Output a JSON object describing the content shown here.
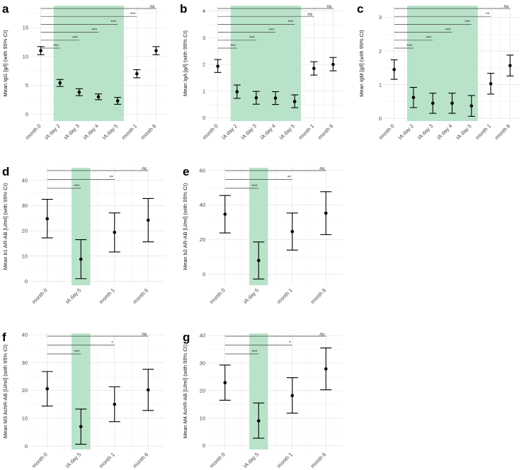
{
  "chart_data": [
    {
      "panel": "a",
      "type": "scatter",
      "ylabel": "Mean IgG [g/l] (with 95% CI)",
      "categories": [
        "month 0",
        "IA day 2",
        "IA day 3",
        "IA day 4",
        "IA day 5",
        "month 1",
        "month 6"
      ],
      "mean": [
        11.0,
        5.4,
        3.8,
        3.0,
        2.3,
        7.0,
        11.0
      ],
      "ci_low": [
        10.3,
        4.8,
        3.2,
        2.5,
        1.7,
        6.3,
        10.3
      ],
      "ci_high": [
        11.7,
        6.0,
        4.4,
        3.5,
        2.9,
        7.7,
        11.7
      ],
      "ylim": [
        -1.2,
        18.8
      ],
      "yticks": [
        0,
        5,
        10,
        15
      ],
      "shaded_range": [
        "IA day 2",
        "IA day 5"
      ],
      "significance": [
        {
          "to": "IA day 2",
          "label": "***"
        },
        {
          "to": "IA day 3",
          "label": "***"
        },
        {
          "to": "IA day 4",
          "label": "***"
        },
        {
          "to": "IA day 5",
          "label": "***"
        },
        {
          "to": "month 1",
          "label": "***"
        },
        {
          "to": "month 6",
          "label": "ns"
        }
      ]
    },
    {
      "panel": "b",
      "type": "scatter",
      "ylabel": "Mean IgA [g/l] (with 95% CI)",
      "categories": [
        "month 0",
        "IA day 2",
        "IA day 3",
        "IA day 4",
        "IA day 5",
        "month 1",
        "month 6"
      ],
      "mean": [
        1.93,
        0.98,
        0.75,
        0.74,
        0.61,
        1.85,
        2.0
      ],
      "ci_low": [
        1.7,
        0.73,
        0.51,
        0.5,
        0.38,
        1.6,
        1.76
      ],
      "ci_high": [
        2.18,
        1.23,
        0.99,
        0.98,
        0.86,
        2.1,
        2.26
      ],
      "ylim": [
        -0.12,
        4.2
      ],
      "yticks": [
        0,
        1,
        2,
        3,
        4
      ],
      "shaded_range": [
        "IA day 2",
        "IA day 5"
      ],
      "significance": [
        {
          "to": "IA day 2",
          "label": "***"
        },
        {
          "to": "IA day 3",
          "label": "***"
        },
        {
          "to": "IA day 4",
          "label": "***"
        },
        {
          "to": "IA day 5",
          "label": "***"
        },
        {
          "to": "month 1",
          "label": "ns"
        },
        {
          "to": "month 6",
          "label": "ns"
        }
      ]
    },
    {
      "panel": "c",
      "type": "scatter",
      "ylabel": "Mean IgM [g/l] (with 95% CI)",
      "categories": [
        "month 0",
        "IA day 2",
        "IA day 3",
        "IA day 4",
        "IA day 5",
        "month 1",
        "month 6"
      ],
      "mean": [
        1.45,
        0.62,
        0.45,
        0.45,
        0.37,
        1.03,
        1.57
      ],
      "ci_low": [
        1.16,
        0.32,
        0.15,
        0.15,
        0.06,
        0.72,
        1.26
      ],
      "ci_high": [
        1.74,
        0.92,
        0.75,
        0.75,
        0.68,
        1.34,
        1.88
      ],
      "ylim": [
        -0.08,
        3.35
      ],
      "yticks": [
        0,
        1,
        2,
        3
      ],
      "shaded_range": [
        "IA day 2",
        "IA day 5"
      ],
      "significance": [
        {
          "to": "IA day 2",
          "label": "***"
        },
        {
          "to": "IA day 3",
          "label": "***"
        },
        {
          "to": "IA day 4",
          "label": "***"
        },
        {
          "to": "IA day 5",
          "label": "***"
        },
        {
          "to": "month 1",
          "label": "**"
        },
        {
          "to": "month 6",
          "label": "ns"
        }
      ]
    },
    {
      "panel": "d",
      "type": "scatter",
      "ylabel": "Mean  b1 AR-AB  [U/ml] (with 95% CI)",
      "categories": [
        "month 0",
        "IA day 5",
        "month 1",
        "month 6"
      ],
      "mean": [
        24.8,
        8.7,
        19.4,
        24.2
      ],
      "ci_low": [
        17.2,
        1.0,
        11.6,
        15.6
      ],
      "ci_high": [
        32.5,
        16.5,
        27.1,
        32.8
      ],
      "ylim": [
        -1.6,
        45.0
      ],
      "yticks": [
        0,
        10,
        20,
        30,
        40
      ],
      "shaded_range": [
        "IA day 5",
        "IA day 5"
      ],
      "significance": [
        {
          "to": "IA day 5",
          "label": "***"
        },
        {
          "to": "month 1",
          "label": "**"
        },
        {
          "to": "month 6",
          "label": "ns"
        }
      ]
    },
    {
      "panel": "e",
      "type": "scatter",
      "ylabel": "Mean  b2 AR-AB  [U/ml] (with 95% CI)",
      "categories": [
        "month 0",
        "IA day 5",
        "month 1",
        "month 6"
      ],
      "mean": [
        34.7,
        8.0,
        24.7,
        35.3
      ],
      "ci_low": [
        23.9,
        -2.7,
        14.0,
        22.9
      ],
      "ci_high": [
        45.5,
        18.7,
        35.4,
        47.7
      ],
      "ylim": [
        -6.3,
        61.5
      ],
      "yticks": [
        0,
        20,
        40,
        60
      ],
      "shaded_range": [
        "IA day 5",
        "IA day 5"
      ],
      "significance": [
        {
          "to": "IA day 5",
          "label": "***"
        },
        {
          "to": "month 1",
          "label": "**"
        },
        {
          "to": "month 6",
          "label": "ns"
        }
      ]
    },
    {
      "panel": "f",
      "type": "scatter",
      "ylabel": "Mean  M3 AchR-AB  [U/ml] (with 95% CI)",
      "categories": [
        "month 0",
        "IA day 5",
        "month 1",
        "month 6"
      ],
      "mean": [
        20.6,
        7.0,
        15.0,
        20.2
      ],
      "ci_low": [
        14.4,
        0.7,
        8.8,
        12.8
      ],
      "ci_high": [
        26.8,
        13.3,
        21.3,
        27.6
      ],
      "ylim": [
        -1.2,
        40.5
      ],
      "yticks": [
        0,
        10,
        20,
        30,
        40
      ],
      "shaded_range": [
        "IA day 5",
        "IA day 5"
      ],
      "significance": [
        {
          "to": "IA day 5",
          "label": "***"
        },
        {
          "to": "month 1",
          "label": "*"
        },
        {
          "to": "month 6",
          "label": "ns"
        }
      ]
    },
    {
      "panel": "g",
      "type": "scatter",
      "ylabel": "Mean  M4 AchR-AB  [U/ml] (with 95% CI)",
      "categories": [
        "month 0",
        "IA day 5",
        "month 1",
        "month 6"
      ],
      "mean": [
        22.9,
        9.0,
        18.2,
        27.9
      ],
      "ci_low": [
        16.5,
        2.7,
        11.8,
        20.3
      ],
      "ci_high": [
        29.3,
        15.5,
        24.7,
        35.5
      ],
      "ylim": [
        -1.4,
        40.8
      ],
      "yticks": [
        0,
        10,
        20,
        30,
        40
      ],
      "shaded_range": [
        "IA day 5",
        "IA day 5"
      ],
      "significance": [
        {
          "to": "IA day 5",
          "label": "***"
        },
        {
          "to": "month 1",
          "label": "*"
        },
        {
          "to": "month 6",
          "label": "ns"
        }
      ]
    }
  ],
  "colors": {
    "shade": "#b8e3c8",
    "point": "#000000",
    "grid": "#e6e6e6"
  }
}
